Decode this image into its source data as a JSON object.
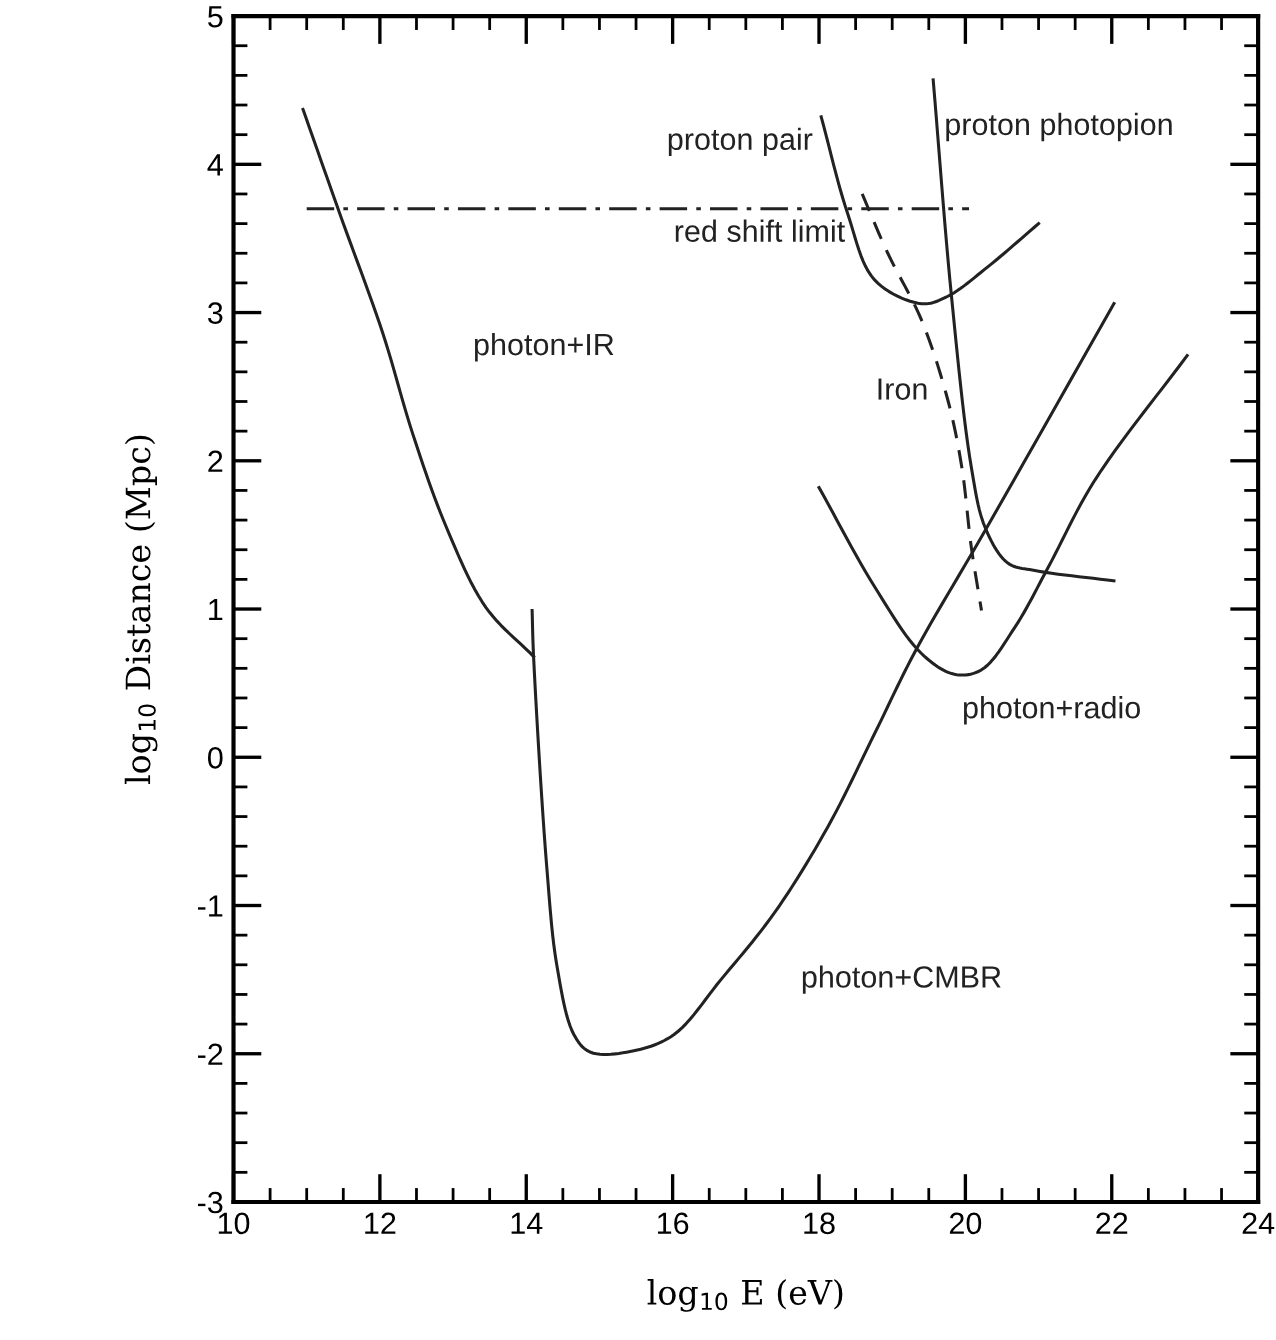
{
  "chart_data": {
    "type": "line",
    "xlabel": "log$_{10}$ E (eV)",
    "ylabel": "log$_{10}$ Distance (Mpc)",
    "xlim": [
      10,
      24
    ],
    "ylim": [
      -3,
      5
    ],
    "xticks": [
      10,
      {
        "value": 10.5,
        "label": null
      },
      {
        "value": 11,
        "label": null
      },
      {
        "value": 11.5,
        "label": null
      },
      12,
      {
        "value": 12.5,
        "label": null
      },
      {
        "value": 13,
        "label": null
      },
      {
        "value": 13.5,
        "label": null
      },
      14,
      {
        "value": 14.5,
        "label": null
      },
      {
        "value": 15,
        "label": null
      },
      {
        "value": 15.5,
        "label": null
      },
      16,
      {
        "value": 16.5,
        "label": null
      },
      {
        "value": 17,
        "label": null
      },
      {
        "value": 17.5,
        "label": null
      },
      18,
      {
        "value": 18.5,
        "label": null
      },
      {
        "value": 19,
        "label": null
      },
      {
        "value": 19.5,
        "label": null
      },
      20,
      {
        "value": 20.5,
        "label": null
      },
      {
        "value": 21,
        "label": null
      },
      {
        "value": 21.5,
        "label": null
      },
      22,
      {
        "value": 22.5,
        "label": null
      },
      {
        "value": 23,
        "label": null
      },
      {
        "value": 23.5,
        "label": null
      },
      24
    ],
    "yticks": [
      -3,
      {
        "value": -2.8,
        "label": null
      },
      {
        "value": -2.6,
        "label": null
      },
      {
        "value": -2.4,
        "label": null
      },
      {
        "value": -2.2,
        "label": null
      },
      -2,
      {
        "value": -1.8,
        "label": null
      },
      {
        "value": -1.6,
        "label": null
      },
      {
        "value": -1.4,
        "label": null
      },
      {
        "value": -1.2,
        "label": null
      },
      -1,
      {
        "value": -0.8,
        "label": null
      },
      {
        "value": -0.6,
        "label": null
      },
      {
        "value": -0.4,
        "label": null
      },
      {
        "value": -0.2,
        "label": null
      },
      0,
      {
        "value": 0.2,
        "label": null
      },
      {
        "value": 0.4,
        "label": null
      },
      {
        "value": 0.6,
        "label": null
      },
      {
        "value": 0.8,
        "label": null
      },
      1,
      {
        "value": 1.2,
        "label": null
      },
      {
        "value": 1.4,
        "label": null
      },
      {
        "value": 1.6,
        "label": null
      },
      {
        "value": 1.8,
        "label": null
      },
      2,
      {
        "value": 2.2,
        "label": null
      },
      {
        "value": 2.4,
        "label": null
      },
      {
        "value": 2.6,
        "label": null
      },
      {
        "value": 2.8,
        "label": null
      },
      3,
      {
        "value": 3.2,
        "label": null
      },
      {
        "value": 3.4,
        "label": null
      },
      {
        "value": 3.6,
        "label": null
      },
      {
        "value": 3.8,
        "label": null
      },
      4,
      {
        "value": 4.2,
        "label": null
      },
      {
        "value": 4.4,
        "label": null
      },
      {
        "value": 4.6,
        "label": null
      },
      {
        "value": 4.8,
        "label": null
      },
      5
    ],
    "grid": false,
    "legend": false,
    "marker": "none",
    "series": [
      {
        "name": "photon+IR",
        "color": "#222222",
        "line_style": "solid",
        "x": [
          10.95,
          11.45,
          12.04,
          12.45,
          12.91,
          13.45,
          14.1
        ],
        "values": [
          4.37,
          3.67,
          2.86,
          2.18,
          1.55,
          1.01,
          0.68
        ]
      },
      {
        "name": "photon+CMBR",
        "color": "#222222",
        "line_style": "solid",
        "x": [
          14.08,
          14.1,
          14.28,
          14.42,
          14.65,
          14.88,
          15.47,
          16.02,
          16.66,
          17.39,
          18.12,
          18.76,
          19.31,
          20.27,
          22.03
        ],
        "values": [
          0.99,
          0.68,
          -0.74,
          -1.41,
          -1.87,
          -1.99,
          -1.98,
          -1.87,
          -1.5,
          -1.05,
          -0.47,
          0.16,
          0.71,
          1.53,
          3.06
        ]
      },
      {
        "name": "photon+radio",
        "color": "#222222",
        "line_style": "solid",
        "x": [
          18.0,
          18.76,
          19.4,
          19.85,
          20.22,
          20.68,
          21.13,
          21.77,
          23.03
        ],
        "values": [
          1.82,
          1.15,
          0.7,
          0.56,
          0.59,
          0.88,
          1.28,
          1.87,
          2.71
        ]
      },
      {
        "name": "proton pair",
        "color": "#222222",
        "line_style": "solid",
        "x": [
          18.03,
          18.39,
          18.76,
          19.4,
          19.76,
          20.31,
          21.0
        ],
        "values": [
          4.32,
          3.67,
          3.22,
          3.06,
          3.11,
          3.31,
          3.6
        ]
      },
      {
        "name": "proton photopion",
        "color": "#222222",
        "line_style": "solid",
        "x": [
          19.56,
          19.81,
          20.08,
          20.27,
          20.58,
          20.95,
          22.03
        ],
        "values": [
          4.57,
          3.11,
          1.96,
          1.55,
          1.31,
          1.26,
          1.19
        ]
      },
      {
        "name": "Iron",
        "color": "#222222",
        "line_style": "dashed",
        "x": [
          18.59,
          18.94,
          19.4,
          19.76,
          19.95,
          20.08,
          20.22
        ],
        "values": [
          3.8,
          3.4,
          2.95,
          2.41,
          1.96,
          1.42,
          0.99
        ]
      },
      {
        "name": "red shift limit",
        "color": "#222222",
        "line_style": "dashdot",
        "x": [
          11.0,
          20.05
        ],
        "values": [
          3.7,
          3.7
        ]
      }
    ]
  }
}
